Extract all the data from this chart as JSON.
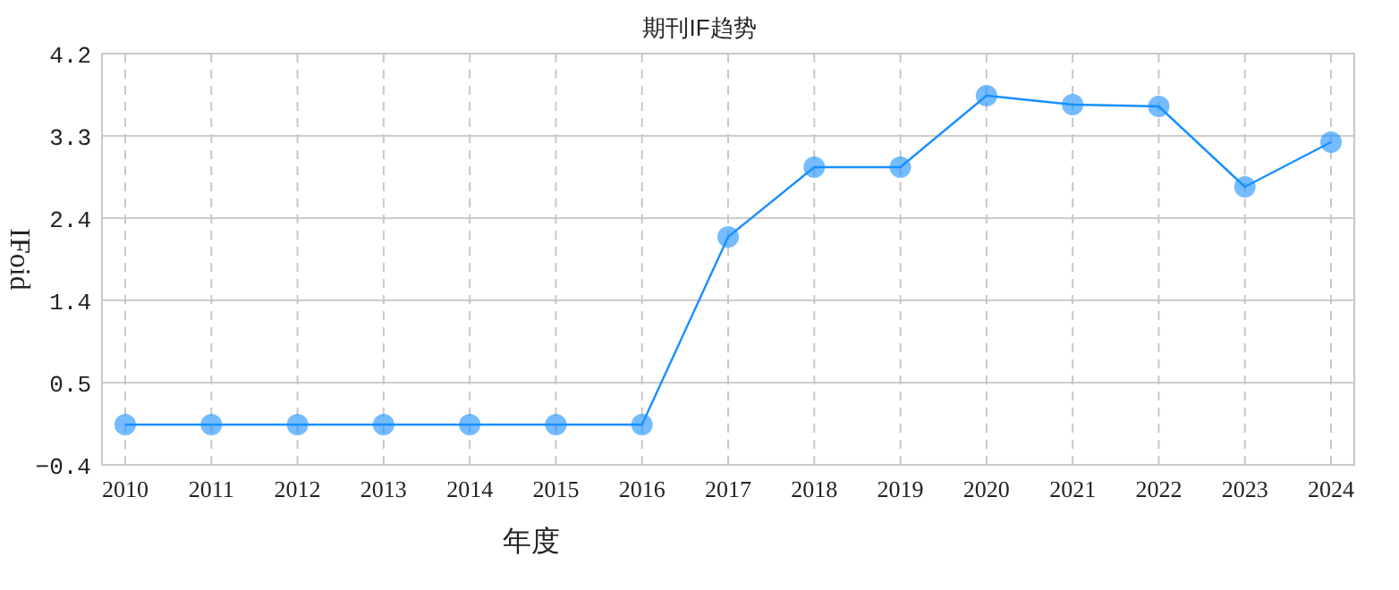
{
  "chart_data": {
    "type": "line",
    "title": "期刊IF趋势",
    "xlabel": "年度",
    "ylabel": "IFoid",
    "categories": [
      "2010",
      "2011",
      "2012",
      "2013",
      "2014",
      "2015",
      "2016",
      "2017",
      "2018",
      "2019",
      "2020",
      "2021",
      "2022",
      "2023",
      "2024"
    ],
    "series": [
      {
        "color": "#1890ff",
        "values": [
          0.05,
          0.05,
          0.05,
          0.05,
          0.05,
          0.05,
          0.05,
          2.15,
          2.93,
          2.93,
          3.73,
          3.63,
          3.61,
          2.71,
          3.21
        ]
      }
    ],
    "ylim": [
      -0.4,
      4.2
    ],
    "yticks": [
      -0.4,
      {
        "value": 0.52,
        "label": "0.5"
      },
      {
        "value": 1.44,
        "label": "1.4"
      },
      {
        "value": 2.36,
        "label": "2.4"
      },
      {
        "value": 3.28,
        "label": "3.3"
      },
      4.2
    ],
    "grid": true,
    "marker": "circle",
    "line_style": "solid"
  }
}
